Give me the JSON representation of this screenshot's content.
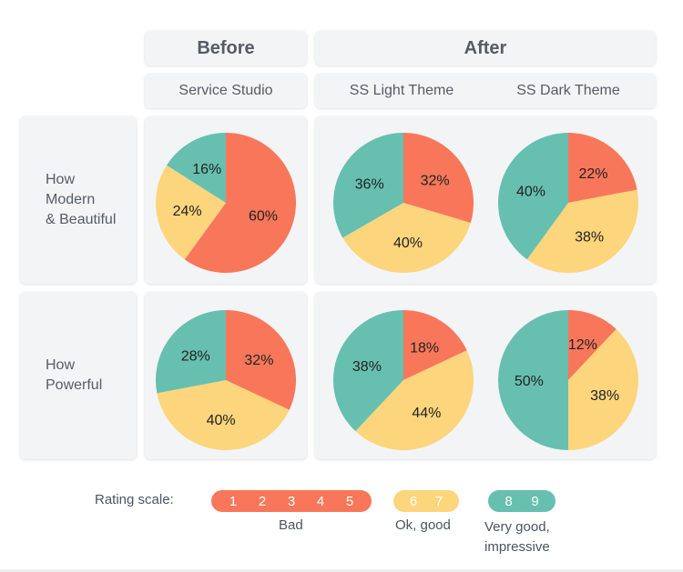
{
  "headers": {
    "before": "Before",
    "after": "After"
  },
  "subheaders": {
    "service_studio": "Service Studio",
    "ss_light": "SS Light Theme",
    "ss_dark": "SS Dark Theme"
  },
  "rows": {
    "modern": [
      "How",
      "Modern",
      "& Beautiful"
    ],
    "powerful": [
      "How",
      "Powerful"
    ]
  },
  "colors": {
    "bad": "#f8775a",
    "ok": "#fcd57c",
    "very_good": "#67bfaf"
  },
  "chart_data": [
    {
      "type": "pie",
      "row": "How Modern & Beautiful",
      "column": "Service Studio",
      "slices": [
        {
          "category": "Bad",
          "value": 60,
          "label": "60%"
        },
        {
          "category": "Ok, good",
          "value": 24,
          "label": "24%"
        },
        {
          "category": "Very good, impressive",
          "value": 16,
          "label": "16%"
        }
      ]
    },
    {
      "type": "pie",
      "row": "How Modern & Beautiful",
      "column": "SS Light Theme",
      "slices": [
        {
          "category": "Bad",
          "value": 32,
          "label": "32%"
        },
        {
          "category": "Ok, good",
          "value": 40,
          "label": "40%"
        },
        {
          "category": "Very good, impressive",
          "value": 36,
          "label": "36%"
        }
      ]
    },
    {
      "type": "pie",
      "row": "How Modern & Beautiful",
      "column": "SS Dark Theme",
      "slices": [
        {
          "category": "Bad",
          "value": 22,
          "label": "22%"
        },
        {
          "category": "Ok, good",
          "value": 38,
          "label": "38%"
        },
        {
          "category": "Very good, impressive",
          "value": 40,
          "label": "40%"
        }
      ]
    },
    {
      "type": "pie",
      "row": "How Powerful",
      "column": "Service Studio",
      "slices": [
        {
          "category": "Bad",
          "value": 32,
          "label": "32%"
        },
        {
          "category": "Ok, good",
          "value": 40,
          "label": "40%"
        },
        {
          "category": "Very good, impressive",
          "value": 28,
          "label": "28%"
        }
      ]
    },
    {
      "type": "pie",
      "row": "How Powerful",
      "column": "SS Light Theme",
      "slices": [
        {
          "category": "Bad",
          "value": 18,
          "label": "18%"
        },
        {
          "category": "Ok, good",
          "value": 44,
          "label": "44%"
        },
        {
          "category": "Very good, impressive",
          "value": 38,
          "label": "38%"
        }
      ]
    },
    {
      "type": "pie",
      "row": "How Powerful",
      "column": "SS Dark Theme",
      "slices": [
        {
          "category": "Bad",
          "value": 12,
          "label": "12%"
        },
        {
          "category": "Ok, good",
          "value": 38,
          "label": "38%"
        },
        {
          "category": "Very good, impressive",
          "value": 50,
          "label": "50%"
        }
      ]
    }
  ],
  "legend": {
    "title": "Rating scale:",
    "groups": [
      {
        "name": "Bad",
        "numbers": [
          "1",
          "2",
          "3",
          "4",
          "5"
        ],
        "color": "#f8775a"
      },
      {
        "name": "Ok, good",
        "numbers": [
          "6",
          "7"
        ],
        "color": "#fcd57c"
      },
      {
        "name_lines": [
          "Very good,",
          "impressive"
        ],
        "numbers": [
          "8",
          "9"
        ],
        "color": "#67bfaf"
      }
    ]
  }
}
